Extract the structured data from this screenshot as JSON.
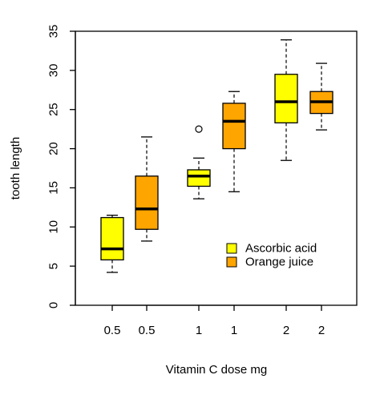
{
  "chart_data": {
    "type": "box",
    "xlabel": "Vitamin C dose mg",
    "ylabel": "tooth length",
    "ylim": [
      0,
      35
    ],
    "yticks": [
      0,
      5,
      10,
      15,
      20,
      25,
      30,
      35
    ],
    "grid": false,
    "legend_position": "bottom-right",
    "series": [
      {
        "name": "Ascorbic acid",
        "color": "#ffff00"
      },
      {
        "name": "Orange juice",
        "color": "#ffa500"
      }
    ],
    "boxes": [
      {
        "label": "0.5",
        "series": "Ascorbic acid",
        "whisker_low": 4.2,
        "q1": 5.8,
        "median": 7.2,
        "q3": 11.2,
        "whisker_high": 11.5,
        "outliers": []
      },
      {
        "label": "0.5",
        "series": "Orange juice",
        "whisker_low": 8.2,
        "q1": 9.7,
        "median": 12.3,
        "q3": 16.5,
        "whisker_high": 21.5,
        "outliers": []
      },
      {
        "label": "1",
        "series": "Ascorbic acid",
        "whisker_low": 13.6,
        "q1": 15.2,
        "median": 16.5,
        "q3": 17.3,
        "whisker_high": 18.8,
        "outliers": [
          22.5
        ]
      },
      {
        "label": "1",
        "series": "Orange juice",
        "whisker_low": 14.5,
        "q1": 20.0,
        "median": 23.5,
        "q3": 25.8,
        "whisker_high": 27.3,
        "outliers": []
      },
      {
        "label": "2",
        "series": "Ascorbic acid",
        "whisker_low": 18.5,
        "q1": 23.3,
        "median": 26.0,
        "q3": 29.5,
        "whisker_high": 33.9,
        "outliers": []
      },
      {
        "label": "2",
        "series": "Orange juice",
        "whisker_low": 22.4,
        "q1": 24.5,
        "median": 26.0,
        "q3": 27.3,
        "whisker_high": 30.9,
        "outliers": []
      }
    ]
  }
}
